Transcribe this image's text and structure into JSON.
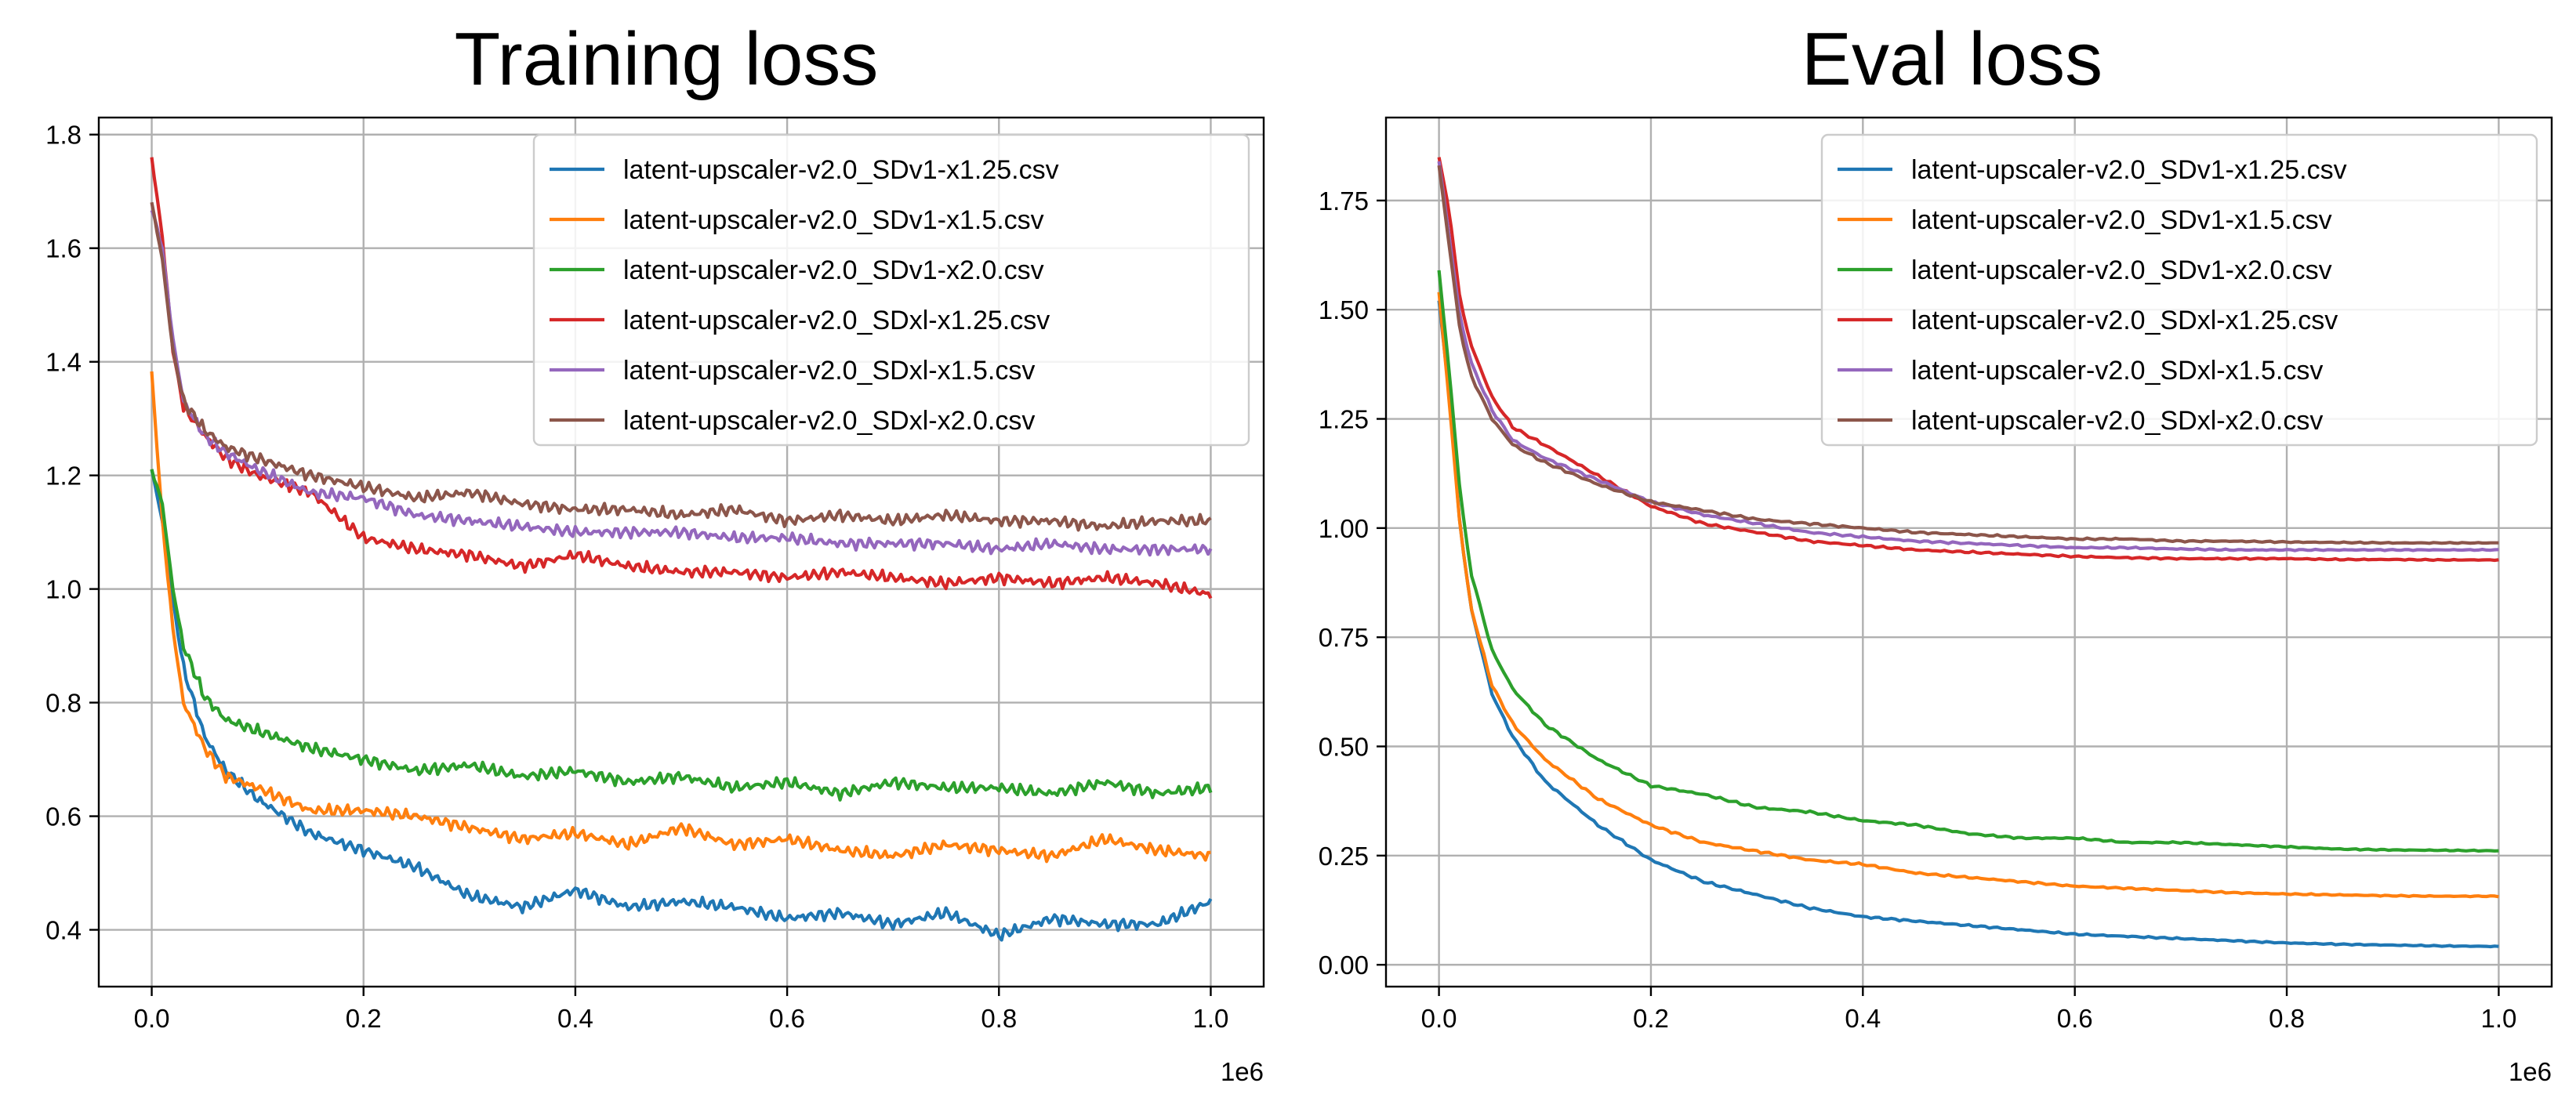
{
  "chart_data": [
    {
      "type": "line",
      "title": "Training loss",
      "xlabel": "",
      "ylabel": "",
      "x_offset_label": "1e6",
      "xlim": [
        -0.05,
        1.05
      ],
      "ylim": [
        0.3,
        1.83
      ],
      "x_ticks": [
        0.0,
        0.2,
        0.4,
        0.6,
        0.8,
        1.0
      ],
      "x_tick_labels": [
        "0.0",
        "0.2",
        "0.4",
        "0.6",
        "0.8",
        "1.0"
      ],
      "y_ticks": [
        0.4,
        0.6,
        0.8,
        1.0,
        1.2,
        1.4,
        1.6,
        1.8
      ],
      "y_tick_labels": [
        "0.4",
        "0.6",
        "0.8",
        "1.0",
        "1.2",
        "1.4",
        "1.6",
        "1.8"
      ],
      "grid": true,
      "legend_position": "top-right",
      "x": [
        0.0,
        0.01,
        0.02,
        0.03,
        0.05,
        0.07,
        0.1,
        0.15,
        0.2,
        0.25,
        0.3,
        0.35,
        0.4,
        0.45,
        0.5,
        0.55,
        0.6,
        0.65,
        0.7,
        0.75,
        0.8,
        0.85,
        0.9,
        0.95,
        1.0
      ],
      "series": [
        {
          "name": "latent-upscaler-v2.0_SDv1-x1.25.csv",
          "color": "#1f77b4",
          "values": [
            1.21,
            1.12,
            0.98,
            0.86,
            0.74,
            0.68,
            0.63,
            0.57,
            0.54,
            0.51,
            0.46,
            0.44,
            0.47,
            0.44,
            0.45,
            0.44,
            0.42,
            0.43,
            0.41,
            0.43,
            0.39,
            0.42,
            0.41,
            0.41,
            0.45
          ]
        },
        {
          "name": "latent-upscaler-v2.0_SDv1-x1.5.csv",
          "color": "#ff7f0e",
          "values": [
            1.38,
            1.12,
            0.93,
            0.8,
            0.72,
            0.67,
            0.65,
            0.61,
            0.61,
            0.6,
            0.58,
            0.56,
            0.57,
            0.55,
            0.58,
            0.55,
            0.56,
            0.54,
            0.53,
            0.55,
            0.54,
            0.53,
            0.56,
            0.54,
            0.53
          ]
        },
        {
          "name": "latent-upscaler-v2.0_SDv1-x2.0.csv",
          "color": "#2ca02c",
          "values": [
            1.21,
            1.15,
            1.0,
            0.9,
            0.81,
            0.77,
            0.75,
            0.72,
            0.7,
            0.68,
            0.69,
            0.67,
            0.68,
            0.66,
            0.67,
            0.65,
            0.66,
            0.64,
            0.66,
            0.65,
            0.65,
            0.64,
            0.66,
            0.64,
            0.65
          ]
        },
        {
          "name": "latent-upscaler-v2.0_SDxl-x1.25.csv",
          "color": "#d62728",
          "values": [
            1.76,
            1.62,
            1.42,
            1.32,
            1.27,
            1.23,
            1.2,
            1.17,
            1.09,
            1.07,
            1.06,
            1.04,
            1.06,
            1.04,
            1.03,
            1.03,
            1.02,
            1.03,
            1.02,
            1.01,
            1.02,
            1.01,
            1.02,
            1.01,
            0.99
          ]
        },
        {
          "name": "latent-upscaler-v2.0_SDxl-x1.5.csv",
          "color": "#9467bd",
          "values": [
            1.67,
            1.6,
            1.44,
            1.33,
            1.27,
            1.24,
            1.21,
            1.17,
            1.16,
            1.13,
            1.12,
            1.11,
            1.1,
            1.1,
            1.1,
            1.09,
            1.09,
            1.08,
            1.08,
            1.08,
            1.07,
            1.08,
            1.07,
            1.07,
            1.07
          ]
        },
        {
          "name": "latent-upscaler-v2.0_SDxl-x2.0.csv",
          "color": "#8c564b",
          "values": [
            1.68,
            1.58,
            1.42,
            1.33,
            1.28,
            1.25,
            1.23,
            1.2,
            1.18,
            1.16,
            1.17,
            1.15,
            1.14,
            1.14,
            1.13,
            1.14,
            1.12,
            1.13,
            1.12,
            1.13,
            1.12,
            1.12,
            1.11,
            1.12,
            1.12
          ]
        }
      ]
    },
    {
      "type": "line",
      "title": "Eval loss",
      "xlabel": "",
      "ylabel": "",
      "x_offset_label": "1e6",
      "xlim": [
        -0.05,
        1.05
      ],
      "ylim": [
        -0.05,
        1.94
      ],
      "x_ticks": [
        0.0,
        0.2,
        0.4,
        0.6,
        0.8,
        1.0
      ],
      "x_tick_labels": [
        "0.0",
        "0.2",
        "0.4",
        "0.6",
        "0.8",
        "1.0"
      ],
      "y_ticks": [
        0.0,
        0.25,
        0.5,
        0.75,
        1.0,
        1.25,
        1.5,
        1.75
      ],
      "y_tick_labels": [
        "0.00",
        "0.25",
        "0.50",
        "0.75",
        "1.00",
        "1.25",
        "1.50",
        "1.75"
      ],
      "grid": true,
      "legend_position": "top-right",
      "x": [
        0.0,
        0.01,
        0.02,
        0.03,
        0.05,
        0.07,
        0.1,
        0.15,
        0.2,
        0.25,
        0.3,
        0.35,
        0.4,
        0.45,
        0.5,
        0.55,
        0.6,
        0.65,
        0.7,
        0.75,
        0.8,
        0.85,
        0.9,
        0.95,
        1.0
      ],
      "series": [
        {
          "name": "latent-upscaler-v2.0_SDv1-x1.25.csv",
          "color": "#1f77b4",
          "values": [
            1.52,
            1.3,
            1.0,
            0.82,
            0.62,
            0.52,
            0.42,
            0.32,
            0.24,
            0.19,
            0.16,
            0.13,
            0.11,
            0.1,
            0.09,
            0.08,
            0.07,
            0.065,
            0.06,
            0.055,
            0.05,
            0.047,
            0.045,
            0.043,
            0.042
          ]
        },
        {
          "name": "latent-upscaler-v2.0_SDv1-x1.5.csv",
          "color": "#ff7f0e",
          "values": [
            1.54,
            1.28,
            1.0,
            0.82,
            0.64,
            0.55,
            0.47,
            0.38,
            0.32,
            0.28,
            0.26,
            0.24,
            0.23,
            0.21,
            0.2,
            0.19,
            0.18,
            0.175,
            0.17,
            0.165,
            0.162,
            0.16,
            0.158,
            0.157,
            0.157
          ]
        },
        {
          "name": "latent-upscaler-v2.0_SDv1-x2.0.csv",
          "color": "#2ca02c",
          "values": [
            1.59,
            1.35,
            1.08,
            0.9,
            0.72,
            0.63,
            0.55,
            0.47,
            0.41,
            0.39,
            0.36,
            0.35,
            0.33,
            0.32,
            0.3,
            0.29,
            0.29,
            0.28,
            0.28,
            0.275,
            0.27,
            0.265,
            0.263,
            0.262,
            0.261
          ]
        },
        {
          "name": "latent-upscaler-v2.0_SDxl-x1.25.csv",
          "color": "#d62728",
          "values": [
            1.85,
            1.72,
            1.52,
            1.42,
            1.3,
            1.23,
            1.19,
            1.12,
            1.05,
            1.01,
            0.99,
            0.97,
            0.96,
            0.95,
            0.945,
            0.94,
            0.935,
            0.932,
            0.93,
            0.93,
            0.93,
            0.928,
            0.928,
            0.927,
            0.927
          ]
        },
        {
          "name": "latent-upscaler-v2.0_SDxl-x1.5.csv",
          "color": "#9467bd",
          "values": [
            1.84,
            1.66,
            1.48,
            1.38,
            1.27,
            1.2,
            1.16,
            1.11,
            1.06,
            1.03,
            1.01,
            0.99,
            0.98,
            0.97,
            0.965,
            0.96,
            0.955,
            0.955,
            0.952,
            0.95,
            0.95,
            0.95,
            0.95,
            0.95,
            0.95
          ]
        },
        {
          "name": "latent-upscaler-v2.0_SDxl-x2.0.csv",
          "color": "#8c564b",
          "values": [
            1.83,
            1.64,
            1.45,
            1.35,
            1.25,
            1.19,
            1.15,
            1.1,
            1.06,
            1.04,
            1.02,
            1.01,
            1.0,
            0.99,
            0.985,
            0.98,
            0.975,
            0.975,
            0.97,
            0.97,
            0.968,
            0.967,
            0.966,
            0.966,
            0.966
          ]
        }
      ]
    }
  ]
}
